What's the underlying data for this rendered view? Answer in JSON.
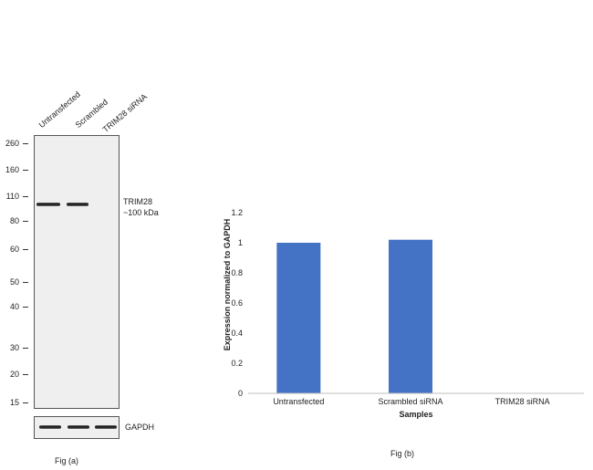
{
  "western_blot": {
    "lanes": [
      "Untransfected",
      "Scrambled",
      "TRIM28 siRNA"
    ],
    "mw_markers": [
      "260",
      "160",
      "110",
      "80",
      "60",
      "50",
      "40",
      "30",
      "20",
      "15"
    ],
    "target_label": "TRIM28",
    "target_size": "~100 kDa",
    "loading_control": "GAPDH",
    "caption": "Fig (a)"
  },
  "chart_data": {
    "type": "bar",
    "categories": [
      "Untransfected",
      "Scrambled siRNA",
      "TRIM28 siRNA"
    ],
    "values": [
      1.0,
      1.02,
      0.0
    ],
    "ylim": [
      0,
      1.2
    ],
    "yticks": [
      "0",
      "0.2",
      "0.4",
      "0.6",
      "0.8",
      "1",
      "1.2"
    ],
    "xlabel": "Samples",
    "ylabel": "Expression  normalized to GAPDH",
    "bar_color": "#4472c4",
    "grid": false,
    "legend": "none",
    "caption": "Fig (b)"
  }
}
